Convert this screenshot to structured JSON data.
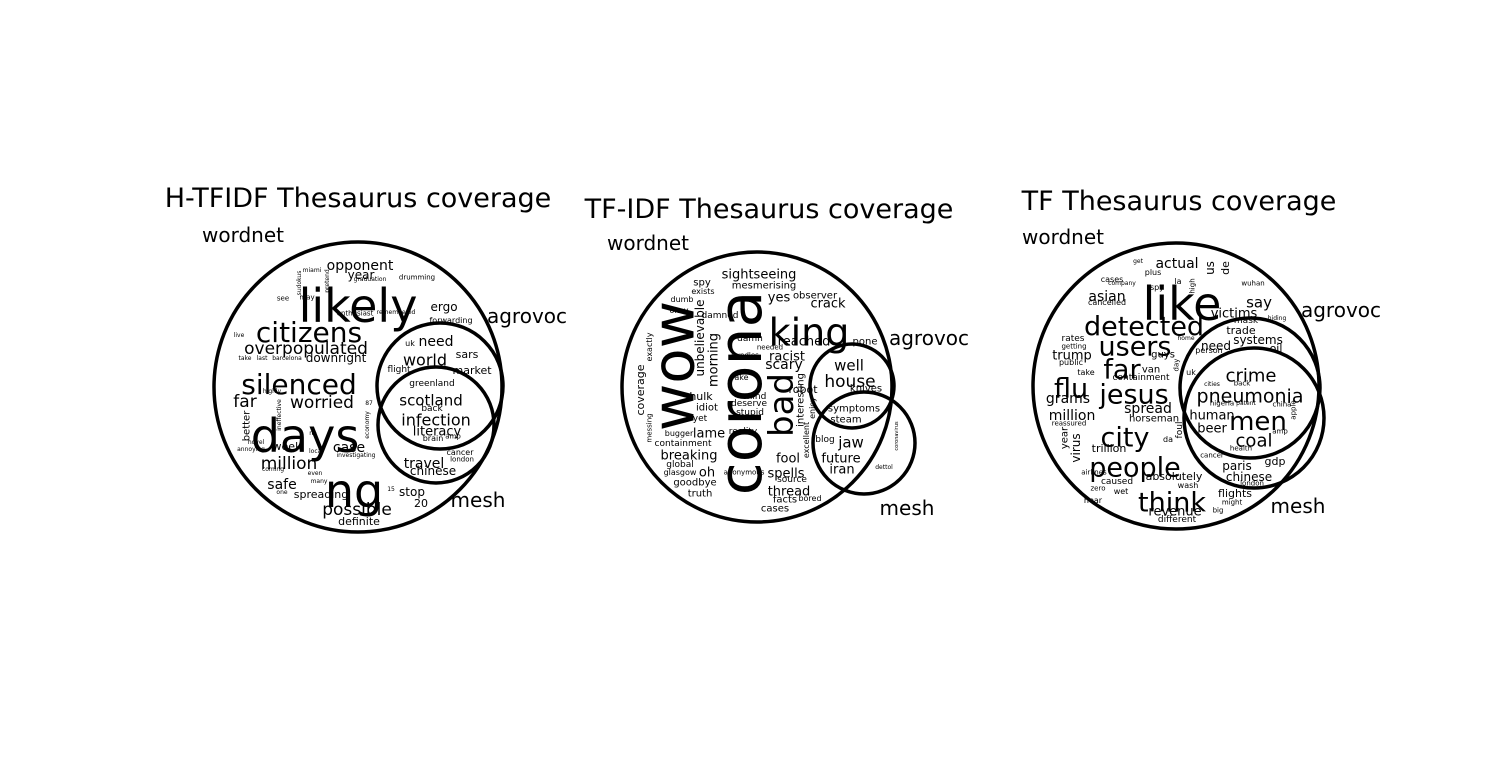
{
  "panels": [
    {
      "id": "htfidf",
      "title": "H-TFIDF Thesaurus coverage",
      "sets": {
        "a": "wordnet",
        "b": "agrovoc",
        "c": "mesh"
      },
      "words": [
        {
          "t": "likely",
          "s": 46
        },
        {
          "t": "days",
          "s": 46
        },
        {
          "t": "ng",
          "s": 46
        },
        {
          "t": "citizens",
          "s": 28
        },
        {
          "t": "silenced",
          "s": 28
        },
        {
          "t": "overpopulated",
          "s": 17
        },
        {
          "t": "worried",
          "s": 17
        },
        {
          "t": "far",
          "s": 17
        },
        {
          "t": "opponent",
          "s": 14
        },
        {
          "t": "year",
          "s": 12
        },
        {
          "t": "downright",
          "s": 12
        },
        {
          "t": "million",
          "s": 17
        },
        {
          "t": "case",
          "s": 14
        },
        {
          "t": "safe",
          "s": 14
        },
        {
          "t": "possible",
          "s": 17
        },
        {
          "t": "spreading",
          "s": 11
        },
        {
          "t": "week",
          "s": 11
        },
        {
          "t": "definite",
          "s": 11
        },
        {
          "t": "better",
          "s": 10
        },
        {
          "t": "ergo",
          "s": 12
        },
        {
          "t": "need",
          "s": 14
        },
        {
          "t": "world",
          "s": 16
        },
        {
          "t": "sars",
          "s": 11
        },
        {
          "t": "market",
          "s": 11
        },
        {
          "t": "flight",
          "s": 9
        },
        {
          "t": "forwarding",
          "s": 8
        },
        {
          "t": "uk",
          "s": 8
        },
        {
          "t": "scotland",
          "s": 15
        },
        {
          "t": "infection",
          "s": 16
        },
        {
          "t": "literacy",
          "s": 13
        },
        {
          "t": "greenland",
          "s": 9
        },
        {
          "t": "back",
          "s": 9
        },
        {
          "t": "brain",
          "s": 8
        },
        {
          "t": "amp",
          "s": 7
        },
        {
          "t": "travel",
          "s": 14
        },
        {
          "t": "chinese",
          "s": 12
        },
        {
          "t": "cancer",
          "s": 8
        },
        {
          "t": "london",
          "s": 7
        },
        {
          "t": "stop",
          "s": 12
        },
        {
          "t": "20",
          "s": 11
        },
        {
          "t": "15",
          "s": 6
        },
        {
          "t": "drumming",
          "s": 7
        },
        {
          "t": "enthusiast",
          "s": 7
        },
        {
          "t": "remembered",
          "s": 6
        },
        {
          "t": "graduation",
          "s": 6
        },
        {
          "t": "miami",
          "s": 6
        },
        {
          "t": "see",
          "s": 7
        },
        {
          "t": "may",
          "s": 7
        },
        {
          "t": "live",
          "s": 6
        },
        {
          "t": "take",
          "s": 6
        },
        {
          "t": "last",
          "s": 6
        },
        {
          "t": "barcelona",
          "s": 6
        },
        {
          "t": "highly",
          "s": 6
        },
        {
          "t": "novel",
          "s": 6
        },
        {
          "t": "annoying",
          "s": 6
        },
        {
          "t": "coming",
          "s": 6
        },
        {
          "t": "one",
          "s": 6
        },
        {
          "t": "even",
          "s": 6
        },
        {
          "t": "many",
          "s": 6
        },
        {
          "t": "local",
          "s": 6
        },
        {
          "t": "investigating",
          "s": 6
        },
        {
          "t": "na",
          "s": 6
        },
        {
          "t": "ineffective",
          "s": 6
        },
        {
          "t": "87",
          "s": 6
        },
        {
          "t": "economy",
          "s": 6
        },
        {
          "t": "pretend",
          "s": 6
        },
        {
          "t": "sudokus",
          "s": 6
        }
      ]
    },
    {
      "id": "tfidf",
      "title": "TF-IDF Thesaurus coverage",
      "sets": {
        "a": "wordnet",
        "b": "agrovoc",
        "c": "mesh"
      },
      "words": [
        {
          "t": "wow",
          "s": 58
        },
        {
          "t": "corona",
          "s": 60
        },
        {
          "t": "king",
          "s": 38
        },
        {
          "t": "bad",
          "s": 34
        },
        {
          "t": "sightseeing",
          "s": 13
        },
        {
          "t": "mesmerising",
          "s": 10
        },
        {
          "t": "yes",
          "s": 13
        },
        {
          "t": "observer",
          "s": 10
        },
        {
          "t": "crack",
          "s": 13
        },
        {
          "t": "reached",
          "s": 13
        },
        {
          "t": "racist",
          "s": 13
        },
        {
          "t": "scary",
          "s": 14
        },
        {
          "t": "pone",
          "s": 10
        },
        {
          "t": "well",
          "s": 15
        },
        {
          "t": "house",
          "s": 17
        },
        {
          "t": "robot",
          "s": 11
        },
        {
          "t": "knives",
          "s": 10
        },
        {
          "t": "symptoms",
          "s": 10
        },
        {
          "t": "steam",
          "s": 10
        },
        {
          "t": "jaw",
          "s": 15
        },
        {
          "t": "future",
          "s": 13
        },
        {
          "t": "iran",
          "s": 13
        },
        {
          "t": "blog",
          "s": 9
        },
        {
          "t": "unbelievable",
          "s": 12
        },
        {
          "t": "morning",
          "s": 13
        },
        {
          "t": "hulk",
          "s": 11
        },
        {
          "t": "idiot",
          "s": 10
        },
        {
          "t": "yet",
          "s": 9
        },
        {
          "t": "lame",
          "s": 13
        },
        {
          "t": "reality",
          "s": 9
        },
        {
          "t": "breaking",
          "s": 13
        },
        {
          "t": "containment",
          "s": 9
        },
        {
          "t": "global",
          "s": 9
        },
        {
          "t": "oh",
          "s": 13
        },
        {
          "t": "glasgow",
          "s": 8
        },
        {
          "t": "goodbye",
          "s": 10
        },
        {
          "t": "truth",
          "s": 10
        },
        {
          "t": "spells",
          "s": 13
        },
        {
          "t": "source",
          "s": 9
        },
        {
          "t": "thread",
          "s": 13
        },
        {
          "t": "facts",
          "s": 10
        },
        {
          "t": "bored",
          "s": 8
        },
        {
          "t": "cases",
          "s": 10
        },
        {
          "t": "fool",
          "s": 13
        },
        {
          "t": "deserve",
          "s": 9
        },
        {
          "t": "stupid",
          "s": 9
        },
        {
          "t": "mind",
          "s": 9
        },
        {
          "t": "fake",
          "s": 8
        },
        {
          "t": "damn",
          "s": 9
        },
        {
          "t": "needed",
          "s": 7
        },
        {
          "t": "bundles",
          "s": 7
        },
        {
          "t": "damned",
          "s": 9
        },
        {
          "t": "okay",
          "s": 8
        },
        {
          "t": "dumb",
          "s": 8
        },
        {
          "t": "exists",
          "s": 8
        },
        {
          "t": "spy",
          "s": 10
        },
        {
          "t": "coverage",
          "s": 11
        },
        {
          "t": "exactly",
          "s": 8
        },
        {
          "t": "messing",
          "s": 7
        },
        {
          "t": "bugger",
          "s": 8
        },
        {
          "t": "anonymous",
          "s": 7
        },
        {
          "t": "interesting",
          "s": 10
        },
        {
          "t": "excellent",
          "s": 8
        },
        {
          "t": "enjoy",
          "s": 8
        },
        {
          "t": "coronavirus",
          "s": 5
        },
        {
          "t": "dettol",
          "s": 6
        }
      ]
    },
    {
      "id": "tf",
      "title": "TF Thesaurus coverage",
      "sets": {
        "a": "wordnet",
        "b": "agrovoc",
        "c": "mesh"
      },
      "words": [
        {
          "t": "like",
          "s": 46
        },
        {
          "t": "detected",
          "s": 27
        },
        {
          "t": "users",
          "s": 27
        },
        {
          "t": "far",
          "s": 27
        },
        {
          "t": "flu",
          "s": 27
        },
        {
          "t": "jesus",
          "s": 27
        },
        {
          "t": "city",
          "s": 27
        },
        {
          "t": "people",
          "s": 27
        },
        {
          "t": "think",
          "s": 27
        },
        {
          "t": "actual",
          "s": 14
        },
        {
          "t": "us",
          "s": 12
        },
        {
          "t": "de",
          "s": 11
        },
        {
          "t": "say",
          "s": 15
        },
        {
          "t": "asian",
          "s": 14
        },
        {
          "t": "victims",
          "s": 13
        },
        {
          "t": "trump",
          "s": 13
        },
        {
          "t": "grams",
          "s": 14
        },
        {
          "t": "million",
          "s": 14
        },
        {
          "t": "spread",
          "s": 14
        },
        {
          "t": "horseman",
          "s": 10
        },
        {
          "t": "virus",
          "s": 12
        },
        {
          "t": "trillion",
          "s": 11
        },
        {
          "t": "absolutely",
          "s": 11
        },
        {
          "t": "revenue",
          "s": 13
        },
        {
          "t": "different",
          "s": 9
        },
        {
          "t": "caused",
          "s": 9
        },
        {
          "t": "airlines",
          "s": 7
        },
        {
          "t": "zero",
          "s": 7
        },
        {
          "t": "hear",
          "s": 8
        },
        {
          "t": "wet",
          "s": 8
        },
        {
          "t": "wash",
          "s": 8
        },
        {
          "t": "big",
          "s": 7
        },
        {
          "t": "crime",
          "s": 18
        },
        {
          "t": "pneumonia",
          "s": 19
        },
        {
          "t": "men",
          "s": 26
        },
        {
          "t": "coal",
          "s": 18
        },
        {
          "t": "human",
          "s": 13
        },
        {
          "t": "beer",
          "s": 13
        },
        {
          "t": "paris",
          "s": 12
        },
        {
          "t": "chinese",
          "s": 12
        },
        {
          "t": "gdp",
          "s": 11
        },
        {
          "t": "flights",
          "s": 11
        },
        {
          "t": "systems",
          "s": 12
        },
        {
          "t": "trade",
          "s": 11
        },
        {
          "t": "mask",
          "s": 9
        },
        {
          "t": "oil",
          "s": 11
        },
        {
          "t": "need",
          "s": 12
        },
        {
          "t": "person",
          "s": 8
        },
        {
          "t": "guys",
          "s": 10
        },
        {
          "t": "van",
          "s": 10
        },
        {
          "t": "containment",
          "s": 9
        },
        {
          "t": "cases",
          "s": 8
        },
        {
          "t": "cancelled",
          "s": 8
        },
        {
          "t": "plus",
          "s": 8
        },
        {
          "t": "spy",
          "s": 8
        },
        {
          "t": "get",
          "s": 6
        },
        {
          "t": "company",
          "s": 6
        },
        {
          "t": "rates",
          "s": 9
        },
        {
          "t": "getting",
          "s": 7
        },
        {
          "t": "public",
          "s": 8
        },
        {
          "t": "take",
          "s": 8
        },
        {
          "t": "reassured",
          "s": 7
        },
        {
          "t": "year",
          "s": 10
        },
        {
          "t": "uk",
          "s": 8
        },
        {
          "t": "da",
          "s": 8
        },
        {
          "t": "foul",
          "s": 9
        },
        {
          "t": "wuhan",
          "s": 7
        },
        {
          "t": "hiding",
          "s": 6
        },
        {
          "t": "home",
          "s": 6
        },
        {
          "t": "back",
          "s": 7
        },
        {
          "t": "cities",
          "s": 6
        },
        {
          "t": "nigeria",
          "s": 7
        },
        {
          "t": "patent",
          "s": 6
        },
        {
          "t": "china",
          "s": 7
        },
        {
          "t": "apple",
          "s": 7
        },
        {
          "t": "amp",
          "s": 7
        },
        {
          "t": "health",
          "s": 7
        },
        {
          "t": "london",
          "s": 7
        },
        {
          "t": "might",
          "s": 7
        },
        {
          "t": "cancer",
          "s": 7
        },
        {
          "t": "la",
          "s": 8
        },
        {
          "t": "high",
          "s": 7
        },
        {
          "t": "day",
          "s": 7
        }
      ]
    }
  ]
}
